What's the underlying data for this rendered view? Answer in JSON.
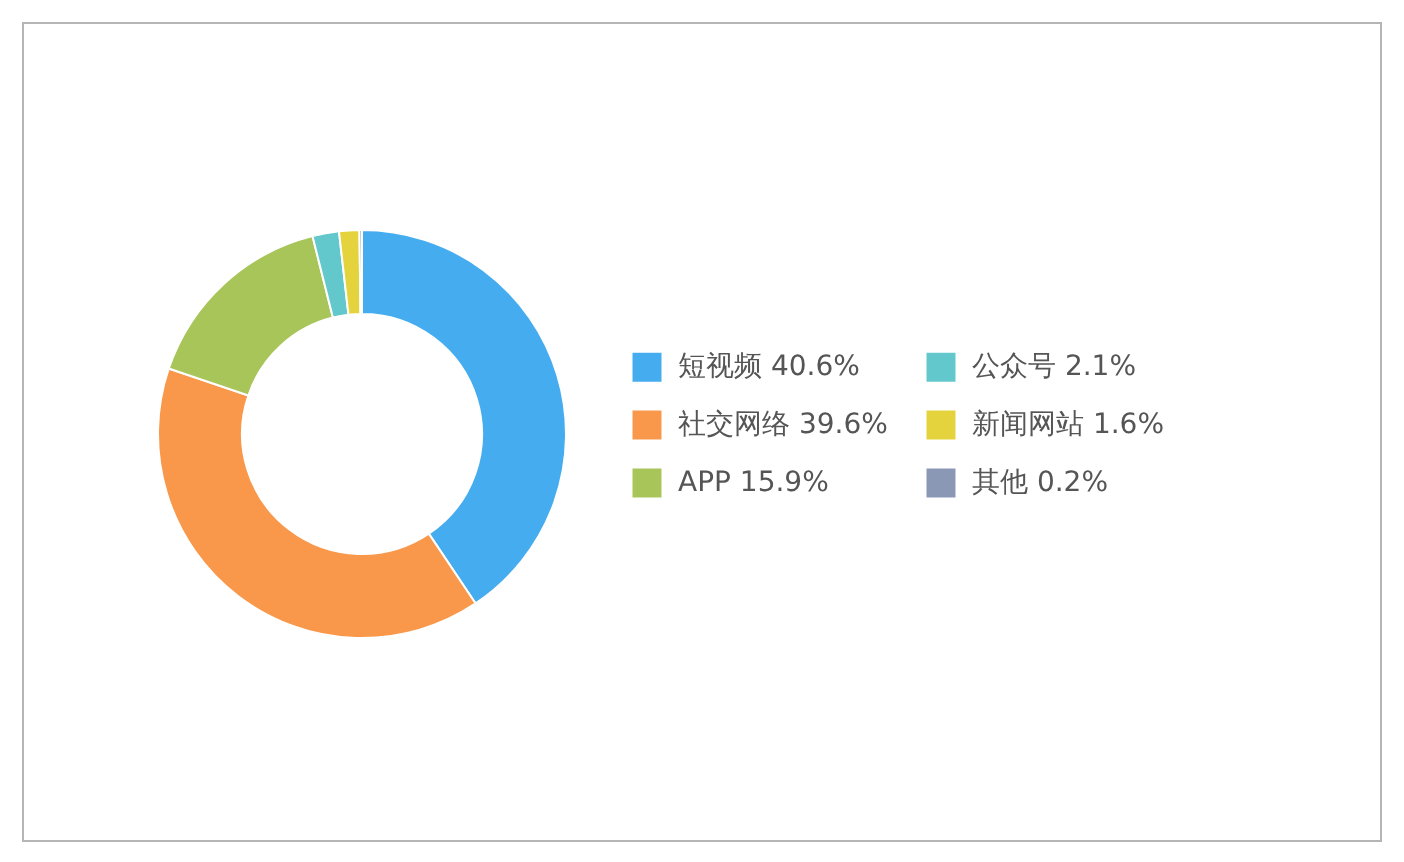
{
  "chart_data": {
    "type": "donut",
    "categories": [
      "短视频",
      "社交网络",
      "APP",
      "公众号",
      "新闻网站",
      "其他"
    ],
    "values": [
      40.6,
      39.6,
      15.9,
      2.1,
      1.6,
      0.2
    ],
    "value_labels": [
      "40.6%",
      "39.6%",
      "15.9%",
      "2.1%",
      "1.6%",
      "0.2%"
    ],
    "colors": [
      "#45acef",
      "#f9984a",
      "#a8c55a",
      "#62c8cc",
      "#e4d33c",
      "#8b98b5"
    ],
    "legend": "right"
  }
}
